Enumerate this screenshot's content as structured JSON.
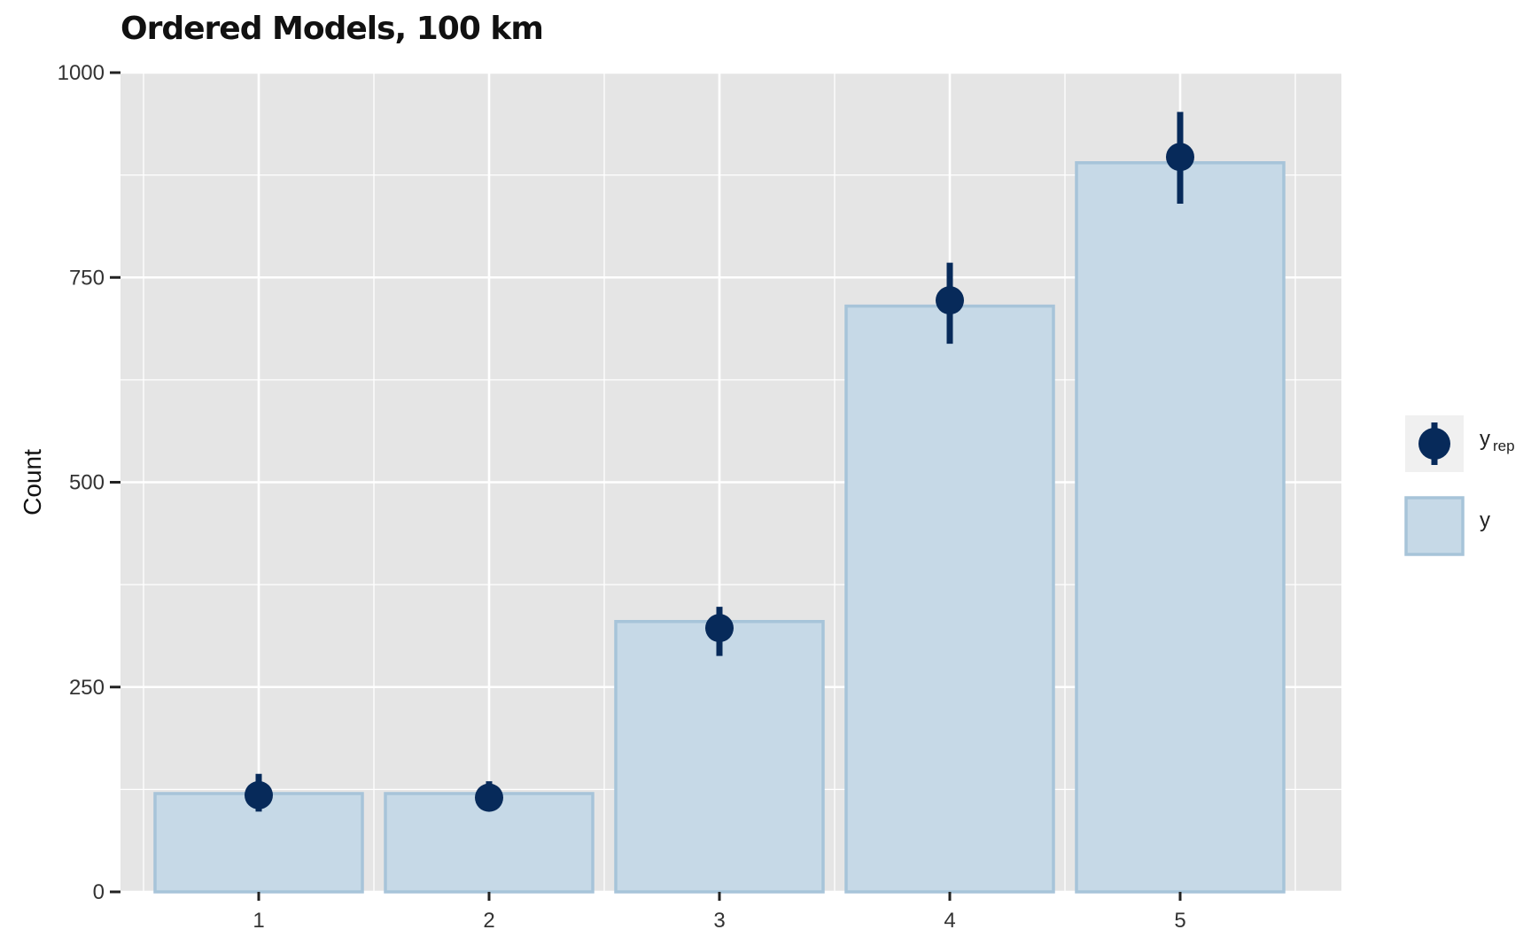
{
  "chart_data": {
    "type": "bar",
    "title": "Ordered Models, 100 km",
    "xlabel": "",
    "ylabel": "Count",
    "categories": [
      "1",
      "2",
      "3",
      "4",
      "5"
    ],
    "xlim": [
      0.4,
      5.7
    ],
    "ylim": [
      0,
      1000
    ],
    "yticks": [
      0,
      250,
      500,
      750,
      1000
    ],
    "grid": true,
    "legend_position": "right",
    "series": [
      {
        "name": "y",
        "kind": "bar",
        "values": [
          120,
          120,
          330,
          715,
          890
        ]
      },
      {
        "name": "y_rep",
        "kind": "pointrange",
        "values": [
          118,
          115,
          322,
          722,
          897
        ],
        "lower": [
          98,
          103,
          288,
          669,
          840
        ],
        "upper": [
          144,
          135,
          348,
          768,
          952
        ]
      }
    ],
    "legend": [
      {
        "label": "y",
        "sub": "rep",
        "series": "y_rep"
      },
      {
        "label": "y",
        "sub": "",
        "series": "y"
      }
    ],
    "colors": {
      "panel": "#e5e5e5",
      "grid": "#ffffff",
      "bar_fill": "#c6d9e7",
      "bar_stroke": "#a7c4d9",
      "point": "#072a5a",
      "legend_key_bg": "#f0f0f0"
    }
  }
}
